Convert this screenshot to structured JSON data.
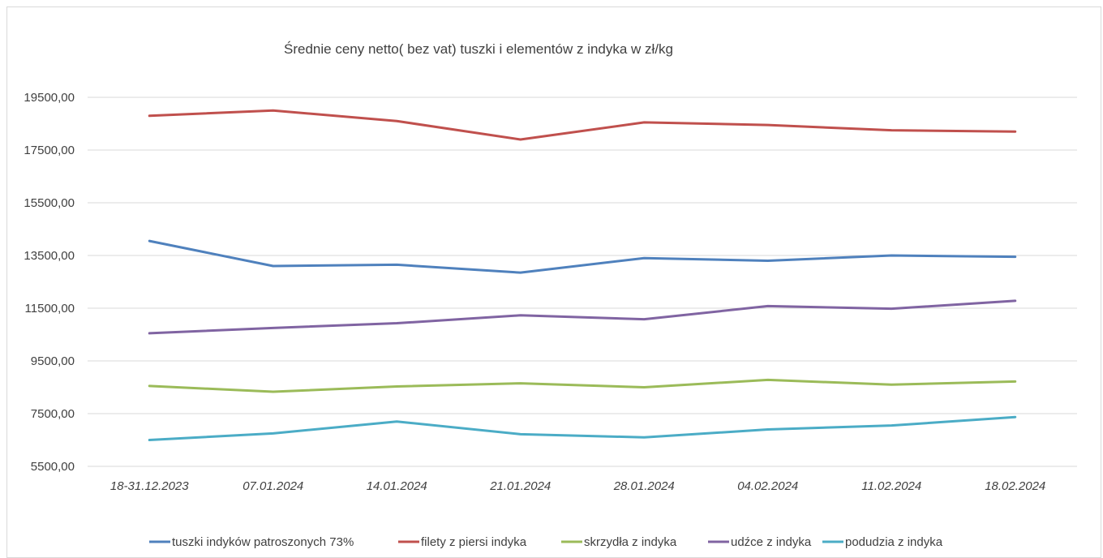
{
  "chart_data": {
    "type": "line",
    "title": "Średnie ceny netto( bez vat) tuszki i elementów z indyka w zł/kg",
    "xlabel": "",
    "ylabel": "",
    "categories": [
      "18-31.12.2023",
      "07.01.2024",
      "14.01.2024",
      "21.01.2024",
      "28.01.2024",
      "04.02.2024",
      "11.02.2024",
      "18.02.2024"
    ],
    "y_ticks": [
      "5500,00",
      "7500,00",
      "9500,00",
      "11500,00",
      "13500,00",
      "15500,00",
      "17500,00",
      "19500,00"
    ],
    "ylim": [
      5500,
      19500
    ],
    "grid": true,
    "legend_position": "bottom",
    "series": [
      {
        "name": "tuszki indyków patroszonych 73%",
        "color": "#4f81bd",
        "values": [
          14050,
          13100,
          13150,
          12850,
          13400,
          13300,
          13500,
          13450
        ]
      },
      {
        "name": "filety z piersi indyka",
        "color": "#c0504d",
        "values": [
          18800,
          19000,
          18600,
          17900,
          18550,
          18450,
          18250,
          18200
        ]
      },
      {
        "name": "skrzydła z indyka",
        "color": "#9bbb59",
        "values": [
          8550,
          8330,
          8530,
          8650,
          8500,
          8780,
          8600,
          8720
        ]
      },
      {
        "name": "udźce z indyka",
        "color": "#8064a2",
        "values": [
          10550,
          10750,
          10930,
          11230,
          11080,
          11580,
          11480,
          11780
        ]
      },
      {
        "name": "podudzia z indyka",
        "color": "#4bacc6",
        "values": [
          6500,
          6750,
          7200,
          6720,
          6600,
          6900,
          7050,
          7370
        ]
      }
    ]
  }
}
